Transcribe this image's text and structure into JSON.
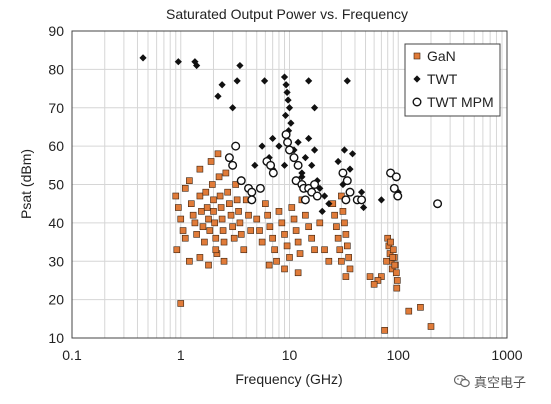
{
  "chart_data": {
    "type": "scatter",
    "title": "Saturated Output Power vs. Frequency",
    "xlabel": "Frequency (GHz)",
    "ylabel": "Psat (dBm)",
    "xscale": "log",
    "xlim": [
      0.1,
      1000
    ],
    "ylim": [
      10,
      90
    ],
    "xticks": [
      "0.1",
      "1",
      "10",
      "100",
      "1000"
    ],
    "yticks": [
      "10",
      "20",
      "30",
      "40",
      "50",
      "60",
      "70",
      "80",
      "90"
    ],
    "grid": true,
    "legend_position": "top-right",
    "series": [
      {
        "name": "GaN",
        "marker": "square",
        "color": "#e07b39",
        "points": [
          [
            0.9,
            47
          ],
          [
            0.95,
            44
          ],
          [
            1.0,
            41
          ],
          [
            1.05,
            38
          ],
          [
            1.1,
            49
          ],
          [
            1.1,
            36
          ],
          [
            0.92,
            33
          ],
          [
            1.2,
            51
          ],
          [
            1.25,
            45
          ],
          [
            1.3,
            42
          ],
          [
            1.35,
            40
          ],
          [
            1.4,
            37
          ],
          [
            1.5,
            54
          ],
          [
            1.5,
            47
          ],
          [
            1.55,
            43
          ],
          [
            1.6,
            39
          ],
          [
            1.65,
            35
          ],
          [
            1.7,
            48
          ],
          [
            1.75,
            44
          ],
          [
            1.8,
            41
          ],
          [
            1.85,
            38
          ],
          [
            1.9,
            56
          ],
          [
            1.95,
            50
          ],
          [
            2.0,
            46
          ],
          [
            2.0,
            43
          ],
          [
            2.05,
            40
          ],
          [
            2.1,
            36
          ],
          [
            2.15,
            32
          ],
          [
            2.2,
            58
          ],
          [
            2.25,
            52
          ],
          [
            2.3,
            47
          ],
          [
            2.35,
            44
          ],
          [
            2.4,
            41
          ],
          [
            2.45,
            38
          ],
          [
            2.5,
            35
          ],
          [
            2.6,
            53
          ],
          [
            2.7,
            48
          ],
          [
            2.8,
            45
          ],
          [
            2.9,
            42
          ],
          [
            3.0,
            39
          ],
          [
            3.1,
            36
          ],
          [
            3.2,
            50
          ],
          [
            3.3,
            46
          ],
          [
            3.4,
            43
          ],
          [
            3.5,
            40
          ],
          [
            3.6,
            37
          ],
          [
            3.8,
            33
          ],
          [
            4.0,
            46
          ],
          [
            4.2,
            42
          ],
          [
            4.4,
            38
          ],
          [
            1.2,
            30
          ],
          [
            1.5,
            31
          ],
          [
            1.8,
            29
          ],
          [
            2.1,
            33
          ],
          [
            2.5,
            30
          ],
          [
            1.0,
            19
          ],
          [
            5.0,
            41
          ],
          [
            5.3,
            38
          ],
          [
            5.6,
            35
          ],
          [
            6.0,
            45
          ],
          [
            6.3,
            42
          ],
          [
            6.6,
            39
          ],
          [
            7.0,
            36
          ],
          [
            7.3,
            33
          ],
          [
            7.6,
            30
          ],
          [
            8.0,
            43
          ],
          [
            8.5,
            40
          ],
          [
            9.0,
            37
          ],
          [
            9.5,
            34
          ],
          [
            10,
            31
          ],
          [
            10.5,
            44
          ],
          [
            11,
            41
          ],
          [
            11.5,
            38
          ],
          [
            12,
            35
          ],
          [
            12.5,
            32
          ],
          [
            13,
            46
          ],
          [
            14,
            42
          ],
          [
            15,
            39
          ],
          [
            16,
            36
          ],
          [
            17,
            33
          ],
          [
            6.5,
            29
          ],
          [
            9.0,
            28
          ],
          [
            12,
            27
          ],
          [
            25,
            45
          ],
          [
            26,
            42
          ],
          [
            27,
            39
          ],
          [
            28,
            36
          ],
          [
            29,
            33
          ],
          [
            30,
            30
          ],
          [
            31,
            43
          ],
          [
            32,
            40
          ],
          [
            33,
            37
          ],
          [
            34,
            34
          ],
          [
            35,
            31
          ],
          [
            36,
            28
          ],
          [
            30,
            47
          ],
          [
            33,
            26
          ],
          [
            21,
            33
          ],
          [
            23,
            30
          ],
          [
            19,
            40
          ],
          [
            80,
            36
          ],
          [
            82,
            34
          ],
          [
            84,
            32
          ],
          [
            86,
            30
          ],
          [
            88,
            28
          ],
          [
            90,
            33
          ],
          [
            92,
            31
          ],
          [
            94,
            29
          ],
          [
            96,
            27
          ],
          [
            98,
            25
          ],
          [
            85,
            35
          ],
          [
            89,
            31
          ],
          [
            93,
            29
          ],
          [
            97,
            23
          ],
          [
            78,
            30
          ],
          [
            70,
            26
          ],
          [
            65,
            25
          ],
          [
            60,
            24
          ],
          [
            55,
            26
          ],
          [
            75,
            12
          ],
          [
            125,
            17
          ],
          [
            160,
            18
          ],
          [
            200,
            13
          ]
        ]
      },
      {
        "name": "TWT",
        "marker": "diamond",
        "color": "#111111",
        "points": [
          [
            0.45,
            83
          ],
          [
            0.95,
            82
          ],
          [
            1.35,
            82
          ],
          [
            1.4,
            81
          ],
          [
            3.5,
            81
          ],
          [
            3.3,
            77
          ],
          [
            2.2,
            73
          ],
          [
            2.4,
            76
          ],
          [
            3.0,
            70
          ],
          [
            5.9,
            77
          ],
          [
            9.0,
            78
          ],
          [
            9.3,
            76
          ],
          [
            9.5,
            74
          ],
          [
            9.7,
            72
          ],
          [
            10,
            70
          ],
          [
            9.2,
            68
          ],
          [
            10.3,
            66
          ],
          [
            9.8,
            64
          ],
          [
            15,
            77
          ],
          [
            17,
            70
          ],
          [
            34,
            77
          ],
          [
            12,
            61
          ],
          [
            15,
            62
          ],
          [
            17,
            59
          ],
          [
            14,
            57
          ],
          [
            16,
            55
          ],
          [
            13,
            53
          ],
          [
            18,
            51
          ],
          [
            19,
            49
          ],
          [
            21,
            47
          ],
          [
            23,
            45
          ],
          [
            20,
            43
          ],
          [
            32,
            59
          ],
          [
            38,
            58
          ],
          [
            28,
            56
          ],
          [
            36,
            54
          ],
          [
            31,
            50
          ],
          [
            46,
            48
          ],
          [
            48,
            44
          ],
          [
            70,
            46
          ],
          [
            100,
            48
          ],
          [
            7,
            62
          ],
          [
            6.5,
            57
          ],
          [
            8,
            60
          ],
          [
            9,
            55
          ],
          [
            11,
            59
          ],
          [
            13,
            52
          ],
          [
            4.8,
            55
          ],
          [
            5.6,
            60
          ],
          [
            7,
            54
          ]
        ]
      },
      {
        "name": "TWT MPM",
        "marker": "circle",
        "color": "#111111",
        "points": [
          [
            3.2,
            60
          ],
          [
            2.8,
            57
          ],
          [
            3.0,
            55
          ],
          [
            3.6,
            51
          ],
          [
            4.2,
            49
          ],
          [
            4.5,
            48
          ],
          [
            4.5,
            46
          ],
          [
            5.4,
            49
          ],
          [
            6.2,
            56
          ],
          [
            6.7,
            55
          ],
          [
            7.1,
            53
          ],
          [
            9.3,
            63
          ],
          [
            9.6,
            61
          ],
          [
            10,
            59
          ],
          [
            11,
            57
          ],
          [
            12,
            55
          ],
          [
            11.5,
            51
          ],
          [
            13,
            50
          ],
          [
            13.5,
            49
          ],
          [
            14,
            46
          ],
          [
            15,
            49
          ],
          [
            16,
            48
          ],
          [
            17,
            50
          ],
          [
            18,
            47
          ],
          [
            31,
            53
          ],
          [
            34,
            51
          ],
          [
            36,
            48
          ],
          [
            33,
            46
          ],
          [
            42,
            46
          ],
          [
            46,
            46
          ],
          [
            85,
            53
          ],
          [
            96,
            52
          ],
          [
            92,
            49
          ],
          [
            99,
            47
          ],
          [
            230,
            45
          ]
        ]
      }
    ]
  },
  "watermark": {
    "text": "真空电子"
  }
}
